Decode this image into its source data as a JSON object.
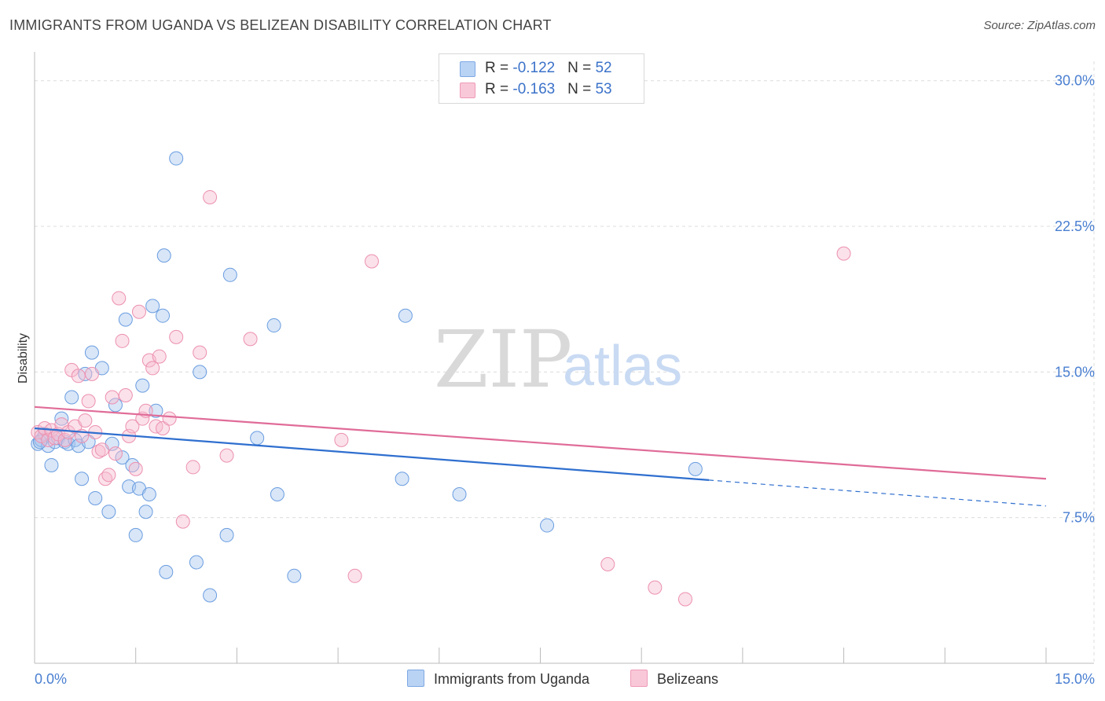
{
  "header": {
    "title": "IMMIGRANTS FROM UGANDA VS BELIZEAN DISABILITY CORRELATION CHART",
    "source": "Source: ZipAtlas.com"
  },
  "legend": {
    "row1": {
      "r_label": "R = ",
      "r_value": "-0.122",
      "n_label": "N = ",
      "n_value": "52"
    },
    "row2": {
      "r_label": "R = ",
      "r_value": "-0.163",
      "n_label": "N = ",
      "n_value": "53"
    }
  },
  "bottom_legend": {
    "series1": "Immigrants from Uganda",
    "series2": "Belizeans"
  },
  "watermark": {
    "part1": "ZIP",
    "part2": "atlas"
  },
  "colors": {
    "uganda_fill": "#a9c8f0",
    "uganda_stroke": "#6a9de0",
    "uganda_line": "#2f6fcf",
    "belize_fill": "#f6bdd0",
    "belize_stroke": "#ec90b0",
    "belize_line": "#e06c98",
    "tick_text": "#4a7fd1",
    "grid": "#dcdcdc"
  },
  "chart_data": {
    "type": "scatter",
    "ylabel": "Disability",
    "xlabel": "",
    "xlim": [
      0,
      15
    ],
    "ylim": [
      0,
      31
    ],
    "y_ticks": [
      {
        "value": 7.5,
        "label": "7.5%"
      },
      {
        "value": 15,
        "label": "15.0%"
      },
      {
        "value": 22.5,
        "label": "22.5%"
      },
      {
        "value": 30,
        "label": "30.0%"
      }
    ],
    "x_tick_labels": [
      {
        "value": 0,
        "label": "0.0%"
      },
      {
        "value": 15,
        "label": "15.0%"
      }
    ],
    "grid": true,
    "legend_position": "top-center",
    "series": [
      {
        "name": "Immigrants from Uganda",
        "trend": {
          "x0": 0,
          "y0": 12.1,
          "x_solid_end": 10.0,
          "x1": 15,
          "y1": 8.1
        },
        "points": [
          [
            0.05,
            11.3
          ],
          [
            0.1,
            11.5
          ],
          [
            0.15,
            11.8
          ],
          [
            0.2,
            11.2
          ],
          [
            0.25,
            10.2
          ],
          [
            0.3,
            11.4
          ],
          [
            0.35,
            11.6
          ],
          [
            0.4,
            12.6
          ],
          [
            0.45,
            11.4
          ],
          [
            0.5,
            11.3
          ],
          [
            0.55,
            13.7
          ],
          [
            0.6,
            11.5
          ],
          [
            0.65,
            11.2
          ],
          [
            0.7,
            9.5
          ],
          [
            0.75,
            14.9
          ],
          [
            0.8,
            11.4
          ],
          [
            0.85,
            16.0
          ],
          [
            0.9,
            8.5
          ],
          [
            1.0,
            15.2
          ],
          [
            1.1,
            7.8
          ],
          [
            1.15,
            11.3
          ],
          [
            1.2,
            13.3
          ],
          [
            1.3,
            10.6
          ],
          [
            1.35,
            17.7
          ],
          [
            1.4,
            9.1
          ],
          [
            1.45,
            10.2
          ],
          [
            1.5,
            6.6
          ],
          [
            1.55,
            9.0
          ],
          [
            1.6,
            14.3
          ],
          [
            1.65,
            7.8
          ],
          [
            1.7,
            8.7
          ],
          [
            1.75,
            18.4
          ],
          [
            1.8,
            13.0
          ],
          [
            1.9,
            17.9
          ],
          [
            1.92,
            21.0
          ],
          [
            1.95,
            4.7
          ],
          [
            2.1,
            26.0
          ],
          [
            2.4,
            5.2
          ],
          [
            2.45,
            15.0
          ],
          [
            2.6,
            3.5
          ],
          [
            2.85,
            6.6
          ],
          [
            2.9,
            20.0
          ],
          [
            3.3,
            11.6
          ],
          [
            3.55,
            17.4
          ],
          [
            3.6,
            8.7
          ],
          [
            3.85,
            4.5
          ],
          [
            5.45,
            9.5
          ],
          [
            5.5,
            17.9
          ],
          [
            6.3,
            8.7
          ],
          [
            7.6,
            7.1
          ],
          [
            9.8,
            10.0
          ],
          [
            0.08,
            11.4
          ]
        ]
      },
      {
        "name": "Belizeans",
        "trend": {
          "x0": 0,
          "y0": 13.2,
          "x1": 15,
          "y1": 9.5
        },
        "points": [
          [
            0.05,
            11.9
          ],
          [
            0.1,
            11.7
          ],
          [
            0.15,
            12.1
          ],
          [
            0.2,
            11.5
          ],
          [
            0.25,
            12.0
          ],
          [
            0.3,
            11.6
          ],
          [
            0.35,
            11.8
          ],
          [
            0.4,
            12.3
          ],
          [
            0.45,
            11.5
          ],
          [
            0.5,
            11.9
          ],
          [
            0.55,
            15.1
          ],
          [
            0.6,
            12.2
          ],
          [
            0.65,
            14.8
          ],
          [
            0.7,
            11.7
          ],
          [
            0.75,
            12.5
          ],
          [
            0.8,
            13.5
          ],
          [
            0.85,
            14.9
          ],
          [
            0.9,
            11.9
          ],
          [
            0.95,
            10.9
          ],
          [
            1.0,
            11.0
          ],
          [
            1.05,
            9.5
          ],
          [
            1.1,
            9.7
          ],
          [
            1.15,
            13.7
          ],
          [
            1.2,
            10.8
          ],
          [
            1.25,
            18.8
          ],
          [
            1.3,
            16.6
          ],
          [
            1.35,
            13.8
          ],
          [
            1.4,
            11.7
          ],
          [
            1.45,
            12.2
          ],
          [
            1.5,
            10.0
          ],
          [
            1.55,
            18.1
          ],
          [
            1.6,
            12.6
          ],
          [
            1.65,
            13.0
          ],
          [
            1.7,
            15.6
          ],
          [
            1.75,
            15.2
          ],
          [
            1.8,
            12.2
          ],
          [
            1.85,
            15.8
          ],
          [
            1.9,
            12.1
          ],
          [
            2.0,
            12.6
          ],
          [
            2.1,
            16.8
          ],
          [
            2.2,
            7.3
          ],
          [
            2.35,
            10.1
          ],
          [
            2.45,
            16.0
          ],
          [
            2.6,
            24.0
          ],
          [
            2.85,
            10.7
          ],
          [
            3.2,
            16.7
          ],
          [
            4.55,
            11.5
          ],
          [
            4.75,
            4.5
          ],
          [
            5.0,
            20.7
          ],
          [
            8.5,
            5.1
          ],
          [
            9.2,
            3.9
          ],
          [
            9.65,
            3.3
          ],
          [
            12.0,
            21.1
          ]
        ]
      }
    ]
  }
}
